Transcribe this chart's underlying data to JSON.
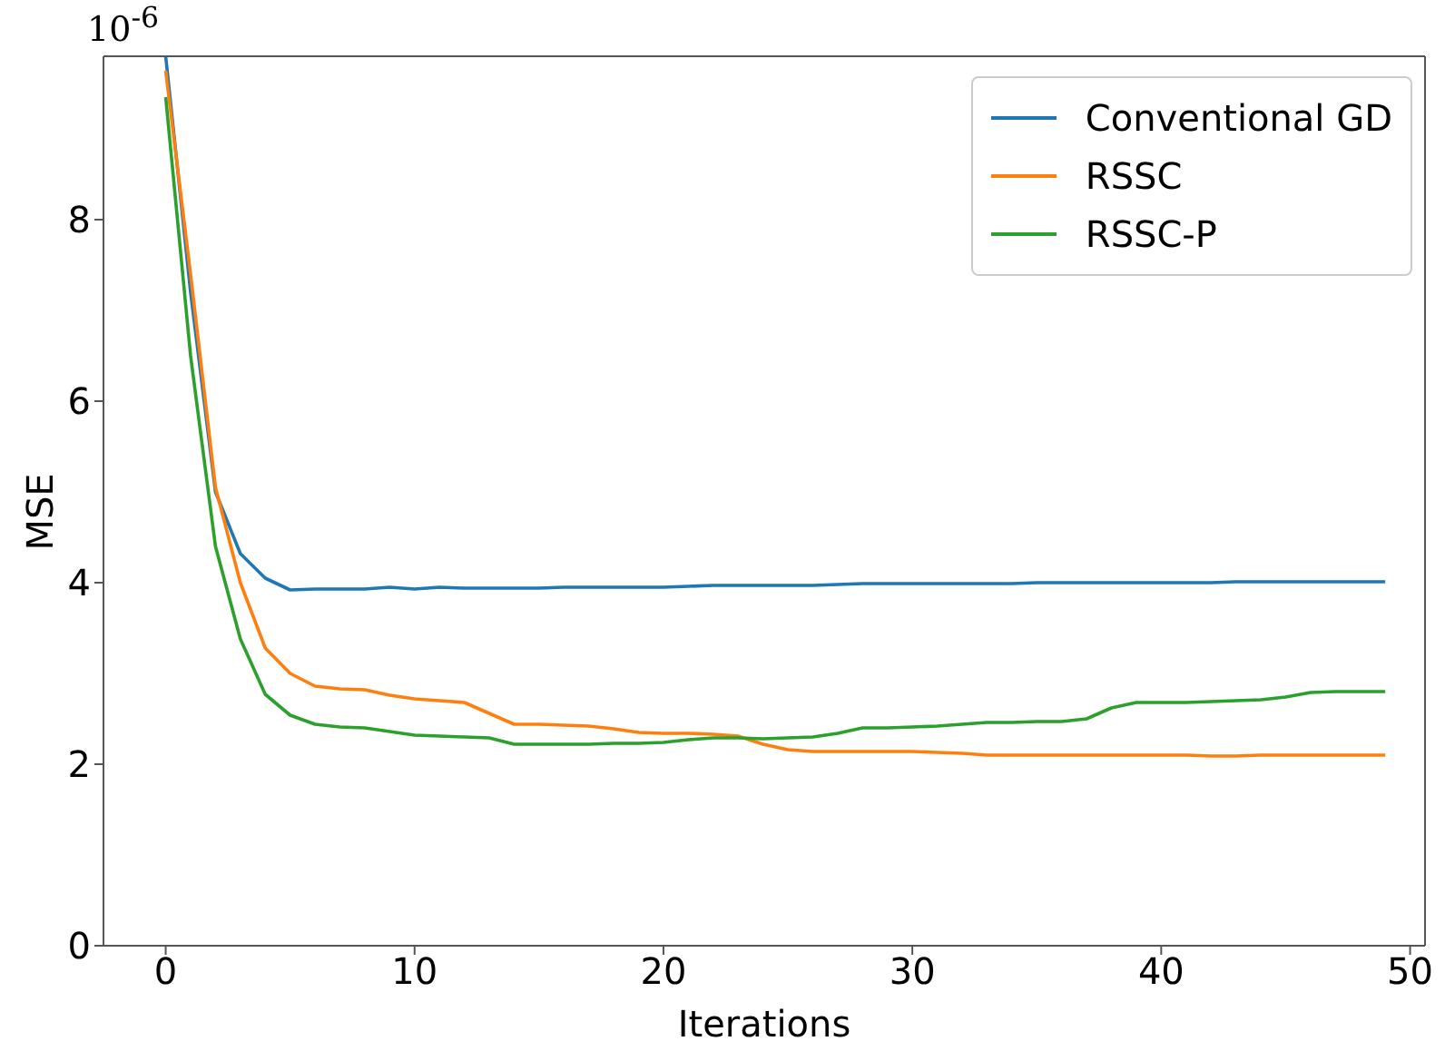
{
  "chart_data": {
    "type": "line",
    "xlabel": "Iterations",
    "ylabel": "MSE",
    "annotations": [
      "10$^{-6}$"
    ],
    "x": [
      0,
      1,
      2,
      3,
      4,
      5,
      6,
      7,
      8,
      9,
      10,
      11,
      12,
      13,
      14,
      15,
      16,
      17,
      18,
      19,
      20,
      21,
      22,
      23,
      24,
      25,
      26,
      27,
      28,
      29,
      30,
      31,
      32,
      33,
      34,
      35,
      36,
      37,
      38,
      39,
      40,
      41,
      42,
      43,
      44,
      45,
      46,
      47,
      48,
      49
    ],
    "xlim": [
      -2.5,
      50.6
    ],
    "xticks": [
      0,
      10,
      20,
      30,
      40,
      50
    ],
    "ylim": [
      0,
      9.8
    ],
    "yticks": [
      0,
      2,
      4,
      6,
      8
    ],
    "grid": false,
    "legend": "top right",
    "marker": "none",
    "line_style": "solid",
    "series": [
      {
        "name": "Conventional GD",
        "color": "#1f77b4",
        "values": [
          9.8,
          7.2,
          5.0,
          4.32,
          4.05,
          3.92,
          3.93,
          3.93,
          3.93,
          3.95,
          3.93,
          3.95,
          3.94,
          3.94,
          3.94,
          3.94,
          3.95,
          3.95,
          3.95,
          3.95,
          3.95,
          3.96,
          3.97,
          3.97,
          3.97,
          3.97,
          3.97,
          3.98,
          3.99,
          3.99,
          3.99,
          3.99,
          3.99,
          3.99,
          3.99,
          4.0,
          4.0,
          4.0,
          4.0,
          4.0,
          4.0,
          4.0,
          4.0,
          4.01,
          4.01,
          4.01,
          4.01,
          4.01,
          4.01,
          4.01
        ]
      },
      {
        "name": "RSSC",
        "color": "#ff7f0e",
        "values": [
          9.64,
          7.4,
          5.05,
          4.0,
          3.28,
          3.0,
          2.86,
          2.83,
          2.82,
          2.76,
          2.72,
          2.7,
          2.68,
          2.56,
          2.44,
          2.44,
          2.43,
          2.42,
          2.39,
          2.35,
          2.34,
          2.34,
          2.33,
          2.31,
          2.22,
          2.16,
          2.14,
          2.14,
          2.14,
          2.14,
          2.14,
          2.13,
          2.12,
          2.1,
          2.1,
          2.1,
          2.1,
          2.1,
          2.1,
          2.1,
          2.1,
          2.1,
          2.09,
          2.09,
          2.1,
          2.1,
          2.1,
          2.1,
          2.1,
          2.1
        ]
      },
      {
        "name": "RSSC-P",
        "color": "#2ca02c",
        "values": [
          9.35,
          6.5,
          4.4,
          3.38,
          2.77,
          2.54,
          2.44,
          2.41,
          2.4,
          2.36,
          2.32,
          2.31,
          2.3,
          2.29,
          2.22,
          2.22,
          2.22,
          2.22,
          2.23,
          2.23,
          2.24,
          2.27,
          2.29,
          2.29,
          2.28,
          2.29,
          2.3,
          2.34,
          2.4,
          2.4,
          2.41,
          2.42,
          2.44,
          2.46,
          2.46,
          2.47,
          2.47,
          2.5,
          2.62,
          2.68,
          2.68,
          2.68,
          2.69,
          2.7,
          2.71,
          2.74,
          2.79,
          2.8,
          2.8,
          2.8
        ]
      }
    ]
  }
}
